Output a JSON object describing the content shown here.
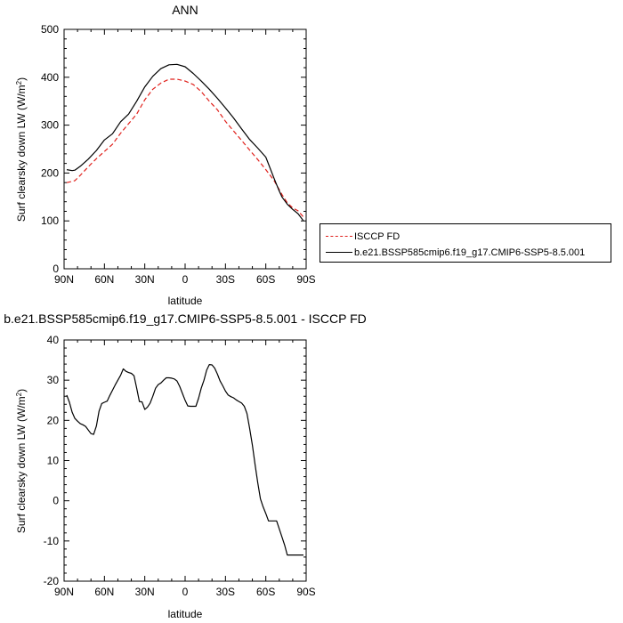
{
  "chart_data": [
    {
      "type": "line",
      "title": "ANN",
      "xlabel": "latitude",
      "ylabel": "Surf clearsky down LW (W/m²)",
      "ylabel_main": "Surf clearsky down LW (W/m",
      "ylabel_sup": "2",
      "ylabel_tail": ")",
      "xlim": [
        90,
        -90
      ],
      "ylim": [
        0,
        500
      ],
      "xticks": [
        90,
        60,
        30,
        0,
        -30,
        -60,
        -90
      ],
      "xtick_labels": [
        "90N",
        "60N",
        "30N",
        "0",
        "30S",
        "60S",
        "90S"
      ],
      "yticks": [
        0,
        100,
        200,
        300,
        400,
        500
      ],
      "ytick_labels": [
        "0",
        "100",
        "200",
        "300",
        "400",
        "500"
      ],
      "legend_position": "right",
      "series": [
        {
          "name": "ISCCP FD",
          "color": "#e0201b",
          "dash": "dashed",
          "x": [
            88,
            82,
            78,
            72,
            66,
            60,
            54,
            48,
            42,
            36,
            30,
            24,
            18,
            12,
            6,
            0,
            -6,
            -12,
            -18,
            -24,
            -30,
            -36,
            -42,
            -48,
            -54,
            -60,
            -66,
            -70,
            -72,
            -76,
            -80,
            -84,
            -88
          ],
          "y": [
            180,
            184,
            195,
            213,
            230,
            245,
            260,
            283,
            303,
            323,
            353,
            375,
            388,
            396,
            396,
            392,
            385,
            370,
            350,
            332,
            308,
            288,
            268,
            248,
            228,
            207,
            185,
            165,
            155,
            138,
            127,
            121,
            108
          ]
        },
        {
          "name": "b.e21.BSSP585cmip6.f19_g17.CMIP6-SSP5-8.5.001",
          "color": "#000000",
          "dash": "solid",
          "x": [
            88,
            84,
            82,
            78,
            72,
            66,
            60,
            54,
            48,
            42,
            36,
            30,
            24,
            18,
            12,
            6,
            0,
            -6,
            -12,
            -18,
            -24,
            -30,
            -36,
            -42,
            -48,
            -54,
            -60,
            -66,
            -70,
            -72,
            -76,
            -80,
            -84,
            -88
          ],
          "y": [
            207,
            205,
            206,
            214,
            229,
            247,
            269,
            282,
            307,
            323,
            350,
            380,
            402,
            418,
            426,
            427,
            422,
            408,
            392,
            375,
            356,
            336,
            315,
            292,
            270,
            252,
            233,
            190,
            162,
            150,
            135,
            124,
            115,
            100
          ]
        }
      ]
    },
    {
      "type": "line",
      "title": "b.e21.BSSP585cmip6.f19_g17.CMIP6-SSP5-8.5.001 - ISCCP FD",
      "xlabel": "latitude",
      "ylabel": "Surf clearsky down LW (W/m²)",
      "ylabel_main": "Surf clearsky down LW (W/m",
      "ylabel_sup": "2",
      "ylabel_tail": ")",
      "xlim": [
        90,
        -90
      ],
      "ylim": [
        -20,
        40
      ],
      "xticks": [
        90,
        60,
        30,
        0,
        -30,
        -60,
        -90
      ],
      "xtick_labels": [
        "90N",
        "60N",
        "30N",
        "0",
        "30S",
        "60S",
        "90S"
      ],
      "yticks": [
        -20,
        -10,
        0,
        10,
        20,
        30,
        40
      ],
      "ytick_labels": [
        "-20",
        "-10",
        "0",
        "10",
        "20",
        "30",
        "40"
      ],
      "series": [
        {
          "color": "#000000",
          "dash": "solid",
          "x": [
            88,
            86,
            84,
            82,
            80,
            78,
            76,
            74,
            72,
            70,
            68,
            66,
            64,
            62,
            60,
            58,
            56,
            54,
            52,
            50,
            48,
            46,
            44,
            42,
            40,
            38,
            36,
            34,
            32,
            30,
            28,
            26,
            24,
            22,
            20,
            18,
            16,
            14,
            12,
            10,
            8,
            6,
            4,
            2,
            0,
            -2,
            -4,
            -6,
            -8,
            -10,
            -12,
            -14,
            -16,
            -18,
            -20,
            -22,
            -24,
            -26,
            -28,
            -30,
            -32,
            -34,
            -36,
            -38,
            -40,
            -42,
            -44,
            -46,
            -48,
            -50,
            -52,
            -54,
            -56,
            -58,
            -60,
            -62,
            -64,
            -66,
            -68,
            -70,
            -72,
            -74,
            -76,
            -78,
            -80,
            -82,
            -84,
            -86,
            -88
          ],
          "y": [
            26.3,
            24.5,
            22.0,
            20.5,
            19.8,
            19.2,
            18.9,
            18.5,
            17.6,
            16.7,
            16.5,
            18.6,
            22.3,
            24.2,
            24.5,
            24.8,
            26.2,
            27.5,
            28.8,
            30.0,
            31.2,
            32.8,
            32.2,
            31.9,
            31.7,
            31.1,
            28.0,
            24.7,
            24.6,
            22.7,
            23.3,
            24.3,
            26.0,
            28.0,
            28.9,
            29.3,
            30.0,
            30.6,
            30.6,
            30.5,
            30.3,
            29.8,
            28.4,
            26.7,
            25.0,
            23.6,
            23.5,
            23.5,
            23.5,
            25.5,
            28.0,
            30.0,
            32.5,
            33.9,
            33.8,
            33.0,
            31.5,
            29.8,
            28.6,
            27.3,
            26.3,
            25.9,
            25.6,
            25.1,
            24.7,
            24.3,
            23.5,
            21.7,
            18.0,
            13.8,
            9.0,
            4.5,
            0.5,
            -1.5,
            -3.2,
            -5.0,
            -5.0,
            -5.0,
            -5.0,
            -7.0,
            -9.0,
            -11.0,
            -13.5,
            -13.5,
            -13.5,
            -13.5,
            -13.5,
            -13.5,
            -13.5
          ]
        }
      ]
    }
  ]
}
